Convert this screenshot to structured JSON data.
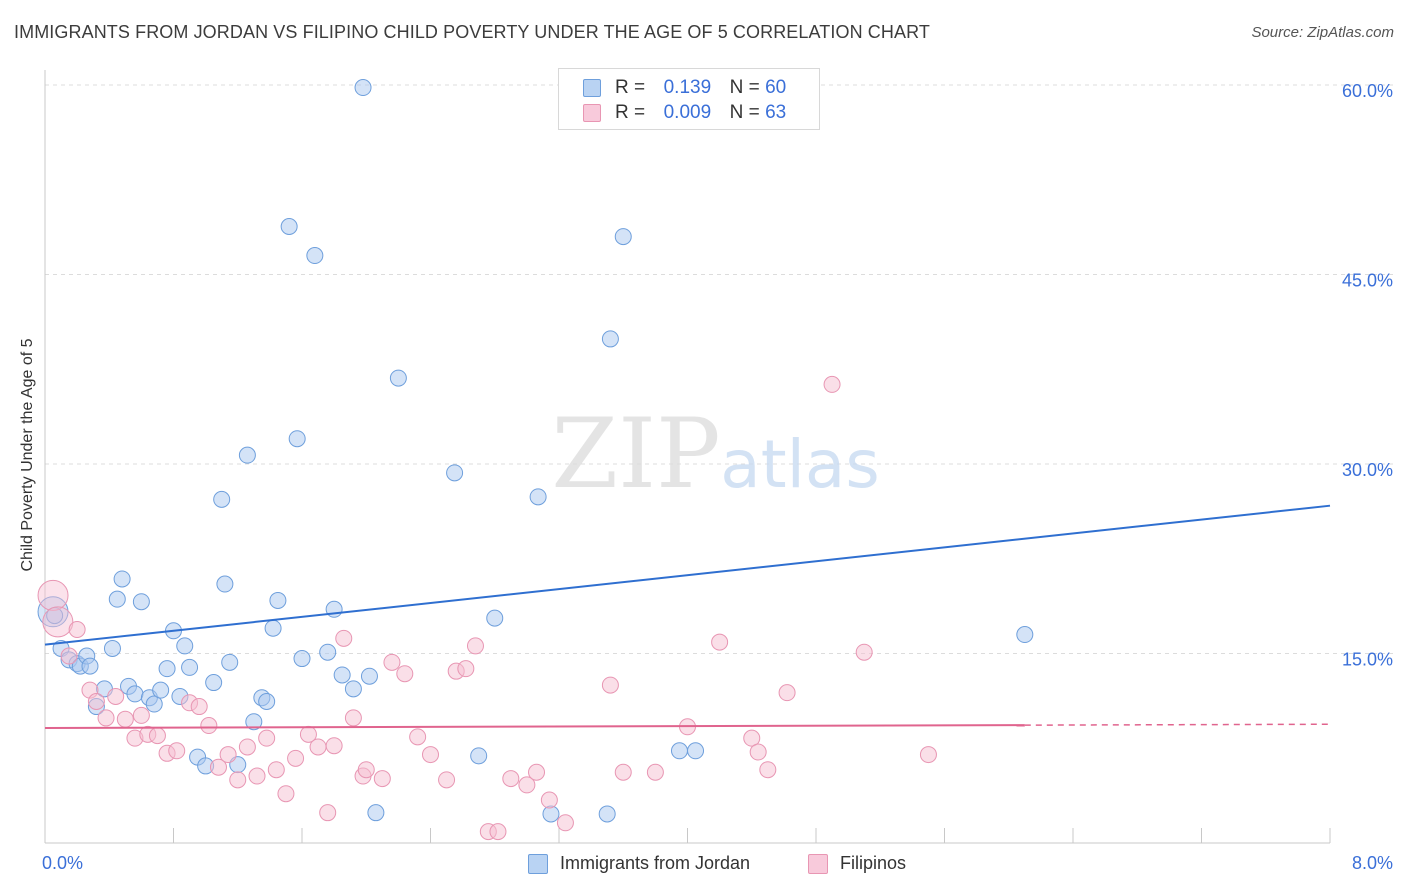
{
  "title": "IMMIGRANTS FROM JORDAN VS FILIPINO CHILD POVERTY UNDER THE AGE OF 5 CORRELATION CHART",
  "source": "Source: ZipAtlas.com",
  "watermark": {
    "zip": "ZIP",
    "atlas": "atlas"
  },
  "legend": {
    "r_label": "R =",
    "n_label": "N =",
    "rows": [
      {
        "r": "0.139",
        "n": "60"
      },
      {
        "r": "0.009",
        "n": "63"
      }
    ]
  },
  "chart_data": {
    "type": "scatter",
    "title": "IMMIGRANTS FROM JORDAN VS FILIPINO CHILD POVERTY UNDER THE AGE OF 5 CORRELATION CHART",
    "ylabel": "Child Poverty Under the Age of 5",
    "xlabel": "",
    "xlim": [
      0,
      8
    ],
    "ylim": [
      0,
      60
    ],
    "x_tick_labels": [
      "0.0%",
      "8.0%"
    ],
    "y_ticks": [
      15,
      30,
      45,
      60
    ],
    "y_tick_labels": [
      "15.0%",
      "30.0%",
      "45.0%",
      "60.0%"
    ],
    "grid": "horizontal dashed",
    "legend_position": "top-center",
    "colors": {
      "jordan_fill": "#a9c8f0",
      "jordan_stroke": "#6e9fdc",
      "jordan_line": "#2f6fd0",
      "filipino_fill": "#f6bfd2",
      "filipino_stroke": "#e896b3",
      "filipino_line": "#e0648e",
      "tick_label": "#3a6fd8"
    },
    "series": [
      {
        "name": "Immigrants from Jordan",
        "color": "#a9c8f0",
        "trend": {
          "x": [
            0.0,
            8.0
          ],
          "y": [
            15.7,
            26.7
          ]
        },
        "points": [
          [
            0.05,
            18.3
          ],
          [
            0.06,
            18.0
          ],
          [
            0.1,
            15.4
          ],
          [
            0.15,
            14.5
          ],
          [
            0.2,
            14.2
          ],
          [
            0.22,
            14.0
          ],
          [
            0.26,
            14.8
          ],
          [
            0.28,
            14.0
          ],
          [
            0.32,
            10.8
          ],
          [
            0.37,
            12.2
          ],
          [
            0.42,
            15.4
          ],
          [
            0.45,
            19.3
          ],
          [
            0.48,
            20.9
          ],
          [
            0.52,
            12.4
          ],
          [
            0.56,
            11.8
          ],
          [
            0.6,
            19.1
          ],
          [
            0.65,
            11.5
          ],
          [
            0.68,
            11.0
          ],
          [
            0.72,
            12.1
          ],
          [
            0.76,
            13.8
          ],
          [
            0.8,
            16.8
          ],
          [
            0.84,
            11.6
          ],
          [
            0.87,
            15.6
          ],
          [
            0.9,
            13.9
          ],
          [
            0.95,
            6.8
          ],
          [
            1.0,
            6.1
          ],
          [
            1.05,
            12.7
          ],
          [
            1.1,
            27.2
          ],
          [
            1.12,
            20.5
          ],
          [
            1.15,
            14.3
          ],
          [
            1.2,
            6.2
          ],
          [
            1.26,
            30.7
          ],
          [
            1.3,
            9.6
          ],
          [
            1.35,
            11.5
          ],
          [
            1.38,
            11.2
          ],
          [
            1.42,
            17.0
          ],
          [
            1.45,
            19.2
          ],
          [
            1.52,
            48.8
          ],
          [
            1.57,
            32.0
          ],
          [
            1.6,
            14.6
          ],
          [
            1.68,
            46.5
          ],
          [
            1.76,
            15.1
          ],
          [
            1.8,
            18.5
          ],
          [
            1.85,
            13.3
          ],
          [
            1.92,
            12.2
          ],
          [
            1.98,
            59.8
          ],
          [
            2.02,
            13.2
          ],
          [
            2.06,
            2.4
          ],
          [
            2.2,
            36.8
          ],
          [
            2.55,
            29.3
          ],
          [
            2.7,
            6.9
          ],
          [
            2.8,
            17.8
          ],
          [
            3.07,
            27.4
          ],
          [
            3.15,
            2.3
          ],
          [
            3.5,
            2.3
          ],
          [
            3.52,
            39.9
          ],
          [
            3.6,
            48.0
          ],
          [
            3.95,
            7.3
          ],
          [
            4.05,
            7.3
          ],
          [
            6.1,
            16.5
          ]
        ]
      },
      {
        "name": "Filipinos",
        "color": "#f6bfd2",
        "trend": {
          "x": [
            0.0,
            8.0
          ],
          "y": [
            9.1,
            9.4
          ]
        },
        "points": [
          [
            0.05,
            19.6
          ],
          [
            0.08,
            17.5
          ],
          [
            0.15,
            14.8
          ],
          [
            0.2,
            16.9
          ],
          [
            0.28,
            12.1
          ],
          [
            0.32,
            11.2
          ],
          [
            0.38,
            9.9
          ],
          [
            0.44,
            11.6
          ],
          [
            0.5,
            9.8
          ],
          [
            0.56,
            8.3
          ],
          [
            0.6,
            10.1
          ],
          [
            0.64,
            8.6
          ],
          [
            0.7,
            8.5
          ],
          [
            0.76,
            7.1
          ],
          [
            0.82,
            7.3
          ],
          [
            0.9,
            11.1
          ],
          [
            0.96,
            10.8
          ],
          [
            1.02,
            9.3
          ],
          [
            1.08,
            6.0
          ],
          [
            1.14,
            7.0
          ],
          [
            1.2,
            5.0
          ],
          [
            1.26,
            7.6
          ],
          [
            1.32,
            5.3
          ],
          [
            1.38,
            8.3
          ],
          [
            1.44,
            5.8
          ],
          [
            1.5,
            3.9
          ],
          [
            1.56,
            6.7
          ],
          [
            1.64,
            8.6
          ],
          [
            1.7,
            7.6
          ],
          [
            1.76,
            2.4
          ],
          [
            1.8,
            7.7
          ],
          [
            1.86,
            16.2
          ],
          [
            1.92,
            9.9
          ],
          [
            1.98,
            5.3
          ],
          [
            2.0,
            5.8
          ],
          [
            2.1,
            5.1
          ],
          [
            2.16,
            14.3
          ],
          [
            2.24,
            13.4
          ],
          [
            2.32,
            8.4
          ],
          [
            2.4,
            7.0
          ],
          [
            2.5,
            5.0
          ],
          [
            2.56,
            13.6
          ],
          [
            2.62,
            13.8
          ],
          [
            2.68,
            15.6
          ],
          [
            2.76,
            0.9
          ],
          [
            2.82,
            0.9
          ],
          [
            2.9,
            5.1
          ],
          [
            3.0,
            4.6
          ],
          [
            3.06,
            5.6
          ],
          [
            3.14,
            3.4
          ],
          [
            3.24,
            1.6
          ],
          [
            3.52,
            12.5
          ],
          [
            3.6,
            5.6
          ],
          [
            3.8,
            5.6
          ],
          [
            4.0,
            9.2
          ],
          [
            4.2,
            15.9
          ],
          [
            4.4,
            8.3
          ],
          [
            4.44,
            7.2
          ],
          [
            4.5,
            5.8
          ],
          [
            4.62,
            11.9
          ],
          [
            4.9,
            36.3
          ],
          [
            5.1,
            15.1
          ],
          [
            5.5,
            7.0
          ]
        ]
      }
    ]
  }
}
